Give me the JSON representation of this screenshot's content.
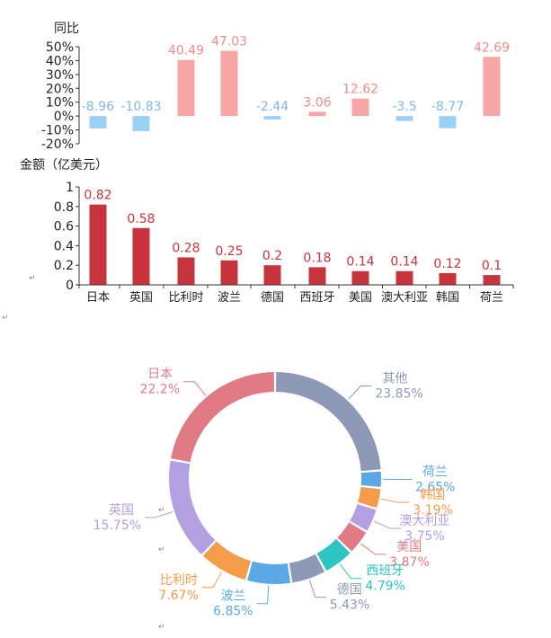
{
  "chart_data": [
    {
      "type": "bar",
      "ylabel": "同比",
      "categories": [
        "日本",
        "英国",
        "比利时",
        "波兰",
        "德国",
        "西班牙",
        "美国",
        "澳大利亚",
        "韩国",
        "荷兰"
      ],
      "values": [
        -8.96,
        -10.83,
        40.49,
        47.03,
        -2.44,
        3.06,
        12.62,
        -3.5,
        -8.77,
        42.69
      ],
      "value_labels": [
        "-8.96",
        "-10.83",
        "40.49",
        "47.03",
        "-2.44",
        "3.06",
        "12.62",
        "-3.5",
        "-8.77",
        "42.69"
      ],
      "ylim": [
        -20,
        50
      ],
      "yticks": [
        -20,
        -10,
        0,
        10,
        20,
        30,
        40,
        50
      ],
      "ytick_labels": [
        "-20%",
        "-10%",
        "0%",
        "10%",
        "20%",
        "30%",
        "40%",
        "50%"
      ],
      "colors": {
        "positive": "#f8a5a5",
        "negative": "#9ad0f5",
        "positive_label": "#f28b8b",
        "negative_label": "#7fb8e6"
      },
      "grid": false
    },
    {
      "type": "bar",
      "ylabel": "金额（亿美元）",
      "categories": [
        "日本",
        "英国",
        "比利时",
        "波兰",
        "德国",
        "西班牙",
        "美国",
        "澳大利亚",
        "韩国",
        "荷兰"
      ],
      "values": [
        0.82,
        0.58,
        0.28,
        0.25,
        0.2,
        0.18,
        0.14,
        0.14,
        0.12,
        0.1
      ],
      "value_labels": [
        "0.82",
        "0.58",
        "0.28",
        "0.25",
        "0.2",
        "0.18",
        "0.14",
        "0.14",
        "0.12",
        "0.1"
      ],
      "ylim": [
        0,
        1
      ],
      "yticks": [
        0,
        0.2,
        0.4,
        0.6,
        0.8,
        1
      ],
      "ytick_labels": [
        "0",
        "0.2",
        "0.4",
        "0.6",
        "0.8",
        "1"
      ],
      "colors": {
        "bar": "#c7343c",
        "label": "#c7343c"
      },
      "grid": false
    },
    {
      "type": "pie",
      "donut": true,
      "slices": [
        {
          "name": "其他",
          "value": 23.85,
          "label": "23.85%",
          "color": "#8e9ab5"
        },
        {
          "name": "荷兰",
          "value": 2.65,
          "label": "2.65%",
          "color": "#5aa9e6"
        },
        {
          "name": "韩国",
          "value": 3.19,
          "label": "3.19%",
          "color": "#f59c4a"
        },
        {
          "name": "澳大利亚",
          "value": 3.75,
          "label": "3.75%",
          "color": "#b3a0e0"
        },
        {
          "name": "美国",
          "value": 3.87,
          "label": "3.87%",
          "color": "#e07a85"
        },
        {
          "name": "西班牙",
          "value": 4.79,
          "label": "4.79%",
          "color": "#2ec4c4"
        },
        {
          "name": "德国",
          "value": 5.43,
          "label": "5.43%",
          "color": "#8e9ab5"
        },
        {
          "name": "波兰",
          "value": 6.85,
          "label": "6.85%",
          "color": "#5aa9e6"
        },
        {
          "name": "比利时",
          "value": 7.67,
          "label": "7.67%",
          "color": "#f59c4a"
        },
        {
          "name": "英国",
          "value": 15.75,
          "label": "15.75%",
          "color": "#b3a0e0"
        },
        {
          "name": "日本",
          "value": 22.2,
          "label": "22.2%",
          "color": "#e07a85"
        }
      ]
    }
  ]
}
